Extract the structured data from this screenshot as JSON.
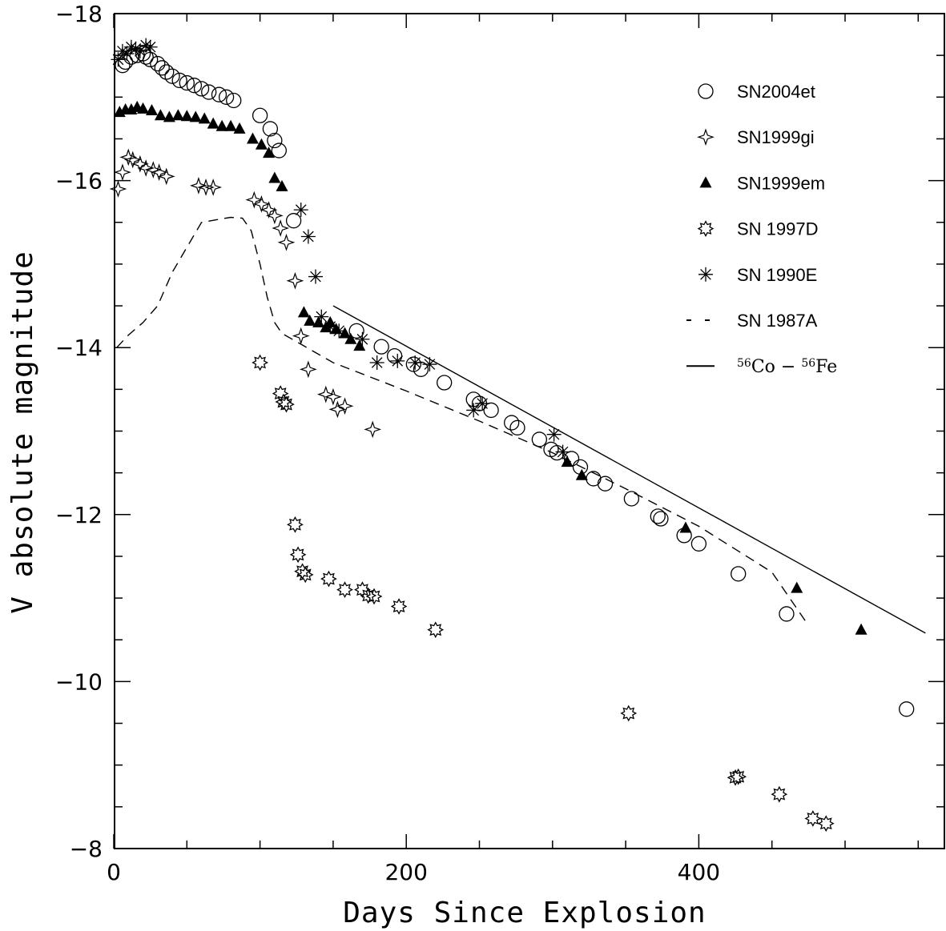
{
  "chart_data": {
    "type": "scatter",
    "xlabel": "Days Since Explosion",
    "ylabel": "V absolute magnitude",
    "xlim": [
      0,
      570
    ],
    "ylim": [
      -18,
      -8
    ],
    "y_inverted": true,
    "x_ticks": [
      0,
      200,
      400
    ],
    "y_ticks": [
      -18,
      -16,
      -14,
      -12,
      -10,
      -8
    ],
    "legend_position": "top-right",
    "series": [
      {
        "name": "SN2004et",
        "marker": "open-circle",
        "points": [
          [
            6,
            -17.38
          ],
          [
            8,
            -17.42
          ],
          [
            12,
            -17.48
          ],
          [
            16,
            -17.5
          ],
          [
            20,
            -17.52
          ],
          [
            22,
            -17.48
          ],
          [
            25,
            -17.45
          ],
          [
            30,
            -17.4
          ],
          [
            33,
            -17.35
          ],
          [
            36,
            -17.3
          ],
          [
            40,
            -17.25
          ],
          [
            45,
            -17.2
          ],
          [
            50,
            -17.17
          ],
          [
            55,
            -17.14
          ],
          [
            60,
            -17.1
          ],
          [
            65,
            -17.06
          ],
          [
            72,
            -17.03
          ],
          [
            77,
            -17.0
          ],
          [
            82,
            -16.96
          ],
          [
            100,
            -16.78
          ],
          [
            107,
            -16.62
          ],
          [
            110,
            -16.48
          ],
          [
            113,
            -16.36
          ],
          [
            123,
            -15.52
          ],
          [
            166,
            -14.2
          ],
          [
            183,
            -14.01
          ],
          [
            192,
            -13.9
          ],
          [
            205,
            -13.8
          ],
          [
            210,
            -13.74
          ],
          [
            226,
            -13.58
          ],
          [
            246,
            -13.38
          ],
          [
            250,
            -13.33
          ],
          [
            258,
            -13.25
          ],
          [
            272,
            -13.1
          ],
          [
            276,
            -13.04
          ],
          [
            291,
            -12.9
          ],
          [
            299,
            -12.78
          ],
          [
            303,
            -12.74
          ],
          [
            313,
            -12.67
          ],
          [
            319,
            -12.57
          ],
          [
            328,
            -12.43
          ],
          [
            336,
            -12.37
          ],
          [
            354,
            -12.19
          ],
          [
            372,
            -11.98
          ],
          [
            374,
            -11.95
          ],
          [
            390,
            -11.75
          ],
          [
            400,
            -11.65
          ],
          [
            427,
            -11.29
          ],
          [
            460,
            -10.81
          ],
          [
            542,
            -9.67
          ]
        ]
      },
      {
        "name": "SN1999gi",
        "marker": "open-star4",
        "points": [
          [
            3,
            -15.9
          ],
          [
            6,
            -16.1
          ],
          [
            10,
            -16.28
          ],
          [
            13,
            -16.25
          ],
          [
            18,
            -16.2
          ],
          [
            22,
            -16.15
          ],
          [
            27,
            -16.13
          ],
          [
            31,
            -16.1
          ],
          [
            36,
            -16.05
          ],
          [
            58,
            -15.94
          ],
          [
            63,
            -15.92
          ],
          [
            68,
            -15.92
          ],
          [
            96,
            -15.77
          ],
          [
            101,
            -15.72
          ],
          [
            106,
            -15.65
          ],
          [
            110,
            -15.58
          ],
          [
            114,
            -15.43
          ],
          [
            118,
            -15.26
          ],
          [
            124,
            -14.8
          ],
          [
            128,
            -14.14
          ],
          [
            133,
            -13.74
          ],
          [
            145,
            -13.44
          ],
          [
            150,
            -13.41
          ],
          [
            153,
            -13.26
          ],
          [
            158,
            -13.3
          ],
          [
            177,
            -13.02
          ]
        ]
      },
      {
        "name": "SN1999em",
        "marker": "filled-triangle",
        "points": [
          [
            4,
            -16.82
          ],
          [
            8,
            -16.85
          ],
          [
            12,
            -16.85
          ],
          [
            16,
            -16.88
          ],
          [
            20,
            -16.86
          ],
          [
            26,
            -16.84
          ],
          [
            32,
            -16.78
          ],
          [
            38,
            -16.76
          ],
          [
            44,
            -16.78
          ],
          [
            50,
            -16.77
          ],
          [
            56,
            -16.76
          ],
          [
            62,
            -16.74
          ],
          [
            68,
            -16.68
          ],
          [
            74,
            -16.65
          ],
          [
            80,
            -16.65
          ],
          [
            86,
            -16.62
          ],
          [
            95,
            -16.5
          ],
          [
            101,
            -16.43
          ],
          [
            106,
            -16.33
          ],
          [
            110,
            -16.03
          ],
          [
            115,
            -15.93
          ],
          [
            130,
            -14.42
          ],
          [
            134,
            -14.32
          ],
          [
            140,
            -14.3
          ],
          [
            145,
            -14.24
          ],
          [
            148,
            -14.3
          ],
          [
            152,
            -14.22
          ],
          [
            158,
            -14.17
          ],
          [
            162,
            -14.1
          ],
          [
            168,
            -14.02
          ],
          [
            310,
            -12.63
          ],
          [
            320,
            -12.47
          ],
          [
            391,
            -11.84
          ],
          [
            467,
            -11.12
          ],
          [
            511,
            -10.62
          ]
        ]
      },
      {
        "name": "SN 1997D",
        "marker": "open-burst",
        "points": [
          [
            100,
            -13.82
          ],
          [
            114,
            -13.45
          ],
          [
            116,
            -13.35
          ],
          [
            118,
            -13.32
          ],
          [
            124,
            -11.88
          ],
          [
            126,
            -11.52
          ],
          [
            129,
            -11.32
          ],
          [
            131,
            -11.28
          ],
          [
            147,
            -11.23
          ],
          [
            158,
            -11.1
          ],
          [
            170,
            -11.1
          ],
          [
            174,
            -11.03
          ],
          [
            178,
            -11.02
          ],
          [
            195,
            -10.9
          ],
          [
            220,
            -10.62
          ],
          [
            352,
            -9.62
          ],
          [
            425,
            -8.85
          ],
          [
            427,
            -8.86
          ],
          [
            455,
            -8.65
          ],
          [
            478,
            -8.36
          ],
          [
            487,
            -8.3
          ]
        ]
      },
      {
        "name": "SN 1990E",
        "marker": "asterisk",
        "points": [
          [
            3,
            -17.45
          ],
          [
            6,
            -17.55
          ],
          [
            9,
            -17.52
          ],
          [
            12,
            -17.6
          ],
          [
            15,
            -17.58
          ],
          [
            18,
            -17.55
          ],
          [
            22,
            -17.62
          ],
          [
            25,
            -17.6
          ],
          [
            128,
            -15.65
          ],
          [
            133,
            -15.33
          ],
          [
            138,
            -14.85
          ],
          [
            142,
            -14.37
          ],
          [
            148,
            -14.25
          ],
          [
            154,
            -14.2
          ],
          [
            170,
            -14.1
          ],
          [
            180,
            -13.82
          ],
          [
            194,
            -13.84
          ],
          [
            206,
            -13.82
          ],
          [
            216,
            -13.8
          ],
          [
            246,
            -13.25
          ],
          [
            252,
            -13.33
          ],
          [
            301,
            -12.96
          ],
          [
            307,
            -12.75
          ]
        ]
      },
      {
        "name": "SN 1987A",
        "line": "dashed",
        "points": [
          [
            2,
            -14.0
          ],
          [
            10,
            -14.15
          ],
          [
            20,
            -14.3
          ],
          [
            30,
            -14.5
          ],
          [
            40,
            -14.9
          ],
          [
            50,
            -15.2
          ],
          [
            60,
            -15.5
          ],
          [
            70,
            -15.53
          ],
          [
            80,
            -15.56
          ],
          [
            88,
            -15.55
          ],
          [
            94,
            -15.4
          ],
          [
            100,
            -15.0
          ],
          [
            105,
            -14.6
          ],
          [
            110,
            -14.3
          ],
          [
            115,
            -14.17
          ],
          [
            125,
            -14.07
          ],
          [
            150,
            -13.82
          ],
          [
            200,
            -13.48
          ],
          [
            250,
            -13.12
          ],
          [
            300,
            -12.74
          ],
          [
            350,
            -12.31
          ],
          [
            400,
            -11.86
          ],
          [
            450,
            -11.31
          ],
          [
            475,
            -10.67
          ]
        ]
      },
      {
        "name": "56Co - 56Fe",
        "line": "solid",
        "points": [
          [
            150,
            -14.5
          ],
          [
            555,
            -10.58
          ]
        ]
      }
    ]
  },
  "legend": {
    "entries": [
      {
        "label": "SN2004et",
        "marker": "open-circle"
      },
      {
        "label": "SN1999gi",
        "marker": "open-star4"
      },
      {
        "label": "SN1999em",
        "marker": "filled-triangle"
      },
      {
        "label": "SN 1997D",
        "marker": "open-burst"
      },
      {
        "label": "SN 1990E",
        "marker": "asterisk"
      },
      {
        "label": "SN 1987A",
        "marker": "dashed-line"
      }
    ],
    "decay": {
      "sup1": "56",
      "iso1": "Co",
      "sep": " − ",
      "sup2": "56",
      "iso2": "Fe"
    }
  }
}
